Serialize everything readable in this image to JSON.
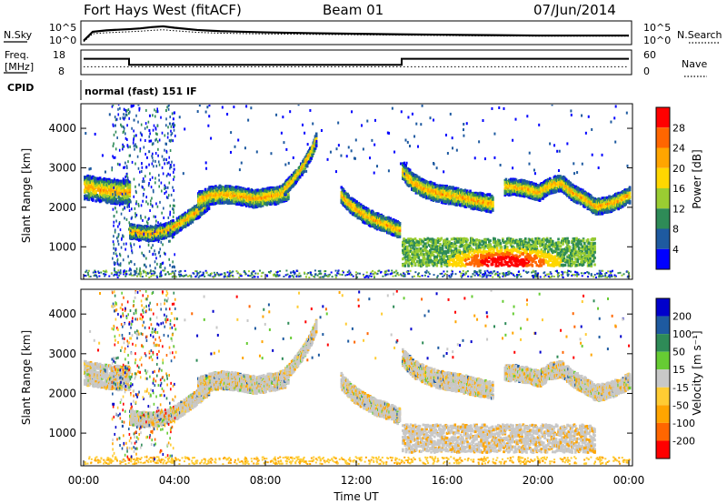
{
  "header": {
    "station": "Fort Hays West (fitACF)",
    "beam": "Beam 01",
    "date": "07/Jun/2014"
  },
  "side_labels": {
    "nsky": "N.Sky",
    "nsearch": "N.Search",
    "freq_line1": "Freq.",
    "freq_line2": "[MHz]",
    "nave": "Nave",
    "cpid": "CPID",
    "cpid_value": "normal (fast) 151 IF"
  },
  "colors": {
    "power": [
      "#0000ff",
      "#1e5aa0",
      "#2e8b57",
      "#9acd32",
      "#ffd700",
      "#ffa500",
      "#ff6600",
      "#ff0000"
    ],
    "velocity": [
      "#ff0000",
      "#ff6600",
      "#ffa500",
      "#ffcc33",
      "#c8c8c8",
      "#66cc33",
      "#2e8b57",
      "#1e5aa0",
      "#0000cc"
    ]
  },
  "chart_data": [
    {
      "type": "line",
      "name": "noise",
      "left_ticks": [
        "10^5",
        "10^0"
      ],
      "right_ticks": [
        "10^5",
        "10^0"
      ],
      "x": [
        0,
        0.4,
        1,
        2,
        2.5,
        3,
        3.5,
        4,
        5,
        6,
        8,
        10,
        12,
        14,
        16,
        18,
        20,
        22,
        24
      ],
      "sky": [
        0.1,
        0.55,
        0.62,
        0.68,
        0.72,
        0.78,
        0.82,
        0.75,
        0.64,
        0.58,
        0.52,
        0.48,
        0.45,
        0.42,
        0.4,
        0.38,
        0.36,
        0.36,
        0.36
      ],
      "search": [
        0.05,
        0.45,
        0.5,
        0.55,
        0.58,
        0.62,
        0.65,
        0.6,
        0.52,
        0.48,
        0.44,
        0.42,
        0.4,
        0.38,
        0.36,
        0.34,
        0.33,
        0.33,
        0.33
      ]
    },
    {
      "type": "line",
      "name": "frequency",
      "left_ticks": [
        "18",
        "8"
      ],
      "right_ticks": [
        "60",
        "0"
      ],
      "freq_x": [
        0,
        2,
        2,
        14,
        14,
        24
      ],
      "freq_mhz": [
        14.5,
        14.5,
        11,
        11,
        14.5,
        14.5
      ],
      "nave_level": 0.3
    },
    {
      "type": "heatmap",
      "name": "power",
      "xlabel": "",
      "ylabel": "Slant Range [km]",
      "yticks": [
        1000,
        2000,
        3000,
        4000
      ],
      "ylim": [
        200,
        4600
      ],
      "xlim": [
        0,
        24
      ],
      "colorbar_label": "Power [dB]",
      "colorbar_ticks": [
        "4",
        "8",
        "12",
        "16",
        "20",
        "24",
        "28"
      ],
      "bands": [
        {
          "xs": [
            0,
            0.5,
            1,
            1.5,
            2
          ],
          "ys": [
            2500,
            2450,
            2400,
            2380,
            2380
          ],
          "w": 300
        },
        {
          "xs": [
            2,
            2.5,
            3,
            3.5,
            4,
            4.5,
            5,
            5.5
          ],
          "ys": [
            1380,
            1340,
            1320,
            1380,
            1500,
            1700,
            1900,
            2150
          ],
          "w": 180
        },
        {
          "xs": [
            5,
            5.5,
            6,
            6.5,
            7,
            7.5,
            8,
            8.5,
            9
          ],
          "ys": [
            2150,
            2280,
            2320,
            2300,
            2260,
            2200,
            2250,
            2300,
            2400
          ],
          "w": 220
        },
        {
          "xs": [
            8.8,
            9.2,
            9.6,
            10,
            10.2
          ],
          "ys": [
            2450,
            2700,
            3000,
            3400,
            3700
          ],
          "w": 160
        },
        {
          "xs": [
            11.3,
            11.8,
            12.3,
            12.8,
            13.3,
            13.9
          ],
          "ys": [
            2300,
            2000,
            1800,
            1650,
            1550,
            1400
          ],
          "w": 200
        },
        {
          "xs": [
            14,
            14.5,
            15,
            15.5,
            16,
            16.5,
            17,
            17.5,
            18
          ],
          "ys": [
            2900,
            2600,
            2450,
            2350,
            2300,
            2250,
            2180,
            2120,
            2080
          ],
          "w": 220
        },
        {
          "xs": [
            18.5,
            19,
            19.5,
            20,
            20.5,
            21,
            21.5,
            22,
            22.5,
            23,
            23.5,
            24
          ],
          "ys": [
            2500,
            2500,
            2450,
            2350,
            2550,
            2600,
            2350,
            2200,
            2000,
            2050,
            2150,
            2300
          ],
          "w": 200
        }
      ],
      "blob": {
        "x": 18.5,
        "y": 600,
        "rx": 1.8,
        "ry": 250
      }
    },
    {
      "type": "heatmap",
      "name": "velocity",
      "xlabel": "Time UT",
      "ylabel": "Slant Range [km]",
      "yticks": [
        1000,
        2000,
        3000,
        4000
      ],
      "ylim": [
        200,
        4600
      ],
      "xlim": [
        0,
        24
      ],
      "colorbar_label": "Velocity [m s⁻¹]",
      "colorbar_ticks": [
        "200",
        "100",
        "50",
        "15",
        "-15",
        "-50",
        "-100",
        "-200"
      ],
      "xtick_labels": [
        "00:00",
        "04:00",
        "08:00",
        "12:00",
        "16:00",
        "20:00",
        "00:00"
      ],
      "xtick_values": [
        0,
        4,
        8,
        12,
        16,
        20,
        24
      ]
    }
  ]
}
